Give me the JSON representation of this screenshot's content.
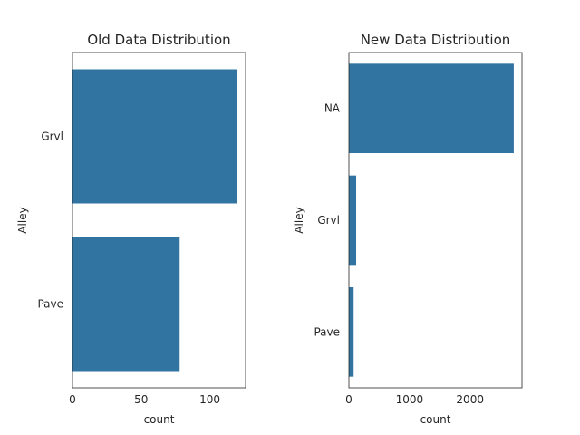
{
  "chart_data": [
    {
      "type": "bar",
      "orientation": "horizontal",
      "title": "Old Data Distribution",
      "xlabel": "count",
      "ylabel": "Alley",
      "categories": [
        "Grvl",
        "Pave"
      ],
      "values": [
        120,
        78
      ],
      "xlim": [
        0,
        126
      ],
      "xticks": [
        0,
        50,
        100
      ],
      "bar_color": "#3274a1",
      "grid": false
    },
    {
      "type": "bar",
      "orientation": "horizontal",
      "title": "New Data Distribution",
      "xlabel": "count",
      "ylabel": "Alley",
      "categories": [
        "NA",
        "Grvl",
        "Pave"
      ],
      "values": [
        2721,
        120,
        78
      ],
      "xlim": [
        0,
        2857
      ],
      "xticks": [
        0,
        1000,
        2000
      ],
      "bar_color": "#3274a1",
      "grid": false
    }
  ]
}
